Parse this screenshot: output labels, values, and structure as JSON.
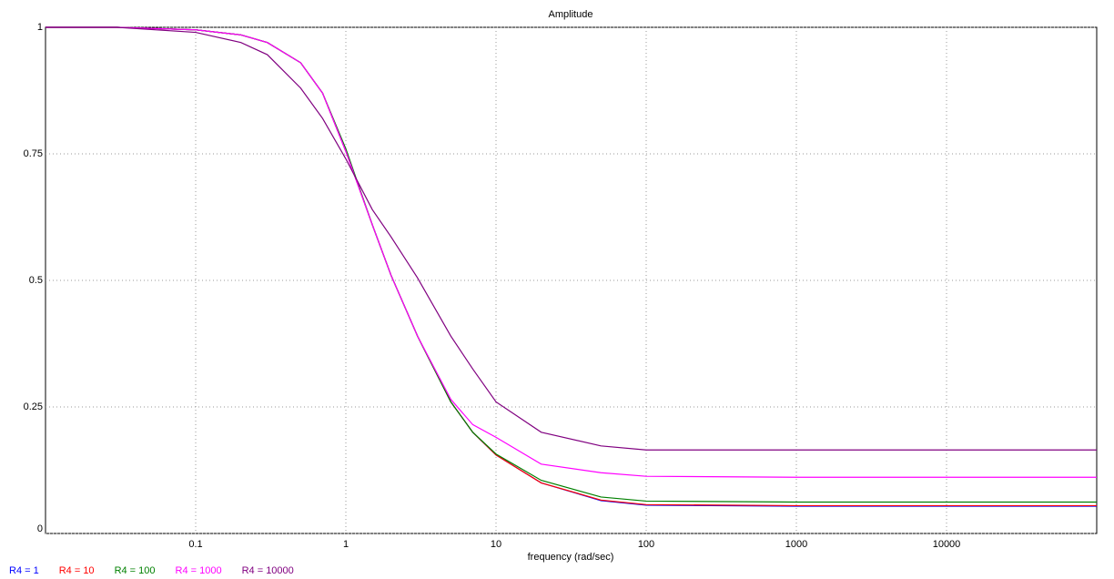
{
  "chart_data": {
    "type": "line",
    "title": "Amplitude",
    "x_label": "frequency (rad/sec)",
    "x_scale": "log",
    "grid": true,
    "legend": "bottom",
    "x": [
      0.01,
      0.03,
      0.1,
      0.2,
      0.3,
      0.5,
      0.7,
      1,
      1.5,
      2,
      3,
      5,
      7,
      10,
      20,
      50,
      100,
      1000,
      10000,
      100000
    ],
    "xlim": [
      0.01,
      100000
    ],
    "xticks": [
      0.1,
      1,
      10,
      100,
      1000,
      10000
    ],
    "ylim": [
      0,
      1
    ],
    "yticks": [
      0,
      0.25,
      0.5,
      0.75,
      1
    ],
    "series": [
      {
        "name": "R4 = 1",
        "color": "#0000ff",
        "values": [
          1,
          1,
          0.995,
          0.985,
          0.97,
          0.93,
          0.87,
          0.755,
          0.61,
          0.51,
          0.39,
          0.26,
          0.2,
          0.155,
          0.1,
          0.065,
          0.056,
          0.054,
          0.054,
          0.054
        ]
      },
      {
        "name": "R4 = 10",
        "color": "#ff0000",
        "values": [
          1,
          1,
          0.995,
          0.985,
          0.97,
          0.93,
          0.87,
          0.755,
          0.61,
          0.51,
          0.39,
          0.26,
          0.2,
          0.155,
          0.1,
          0.066,
          0.057,
          0.055,
          0.055,
          0.055
        ]
      },
      {
        "name": "R4 = 100",
        "color": "#008000",
        "values": [
          1,
          1,
          0.995,
          0.985,
          0.97,
          0.93,
          0.87,
          0.76,
          0.61,
          0.51,
          0.39,
          0.26,
          0.2,
          0.157,
          0.105,
          0.072,
          0.064,
          0.062,
          0.062,
          0.062
        ]
      },
      {
        "name": "R4 = 1000",
        "color": "#ff00ff",
        "values": [
          1,
          1,
          0.995,
          0.985,
          0.97,
          0.93,
          0.87,
          0.755,
          0.61,
          0.51,
          0.39,
          0.265,
          0.215,
          0.19,
          0.137,
          0.12,
          0.113,
          0.111,
          0.111,
          0.111
        ]
      },
      {
        "name": "R4 = 10000",
        "color": "#800080",
        "values": [
          1,
          1,
          0.99,
          0.97,
          0.946,
          0.88,
          0.82,
          0.74,
          0.64,
          0.586,
          0.505,
          0.39,
          0.325,
          0.26,
          0.2,
          0.173,
          0.165,
          0.165,
          0.165,
          0.165
        ]
      }
    ]
  }
}
